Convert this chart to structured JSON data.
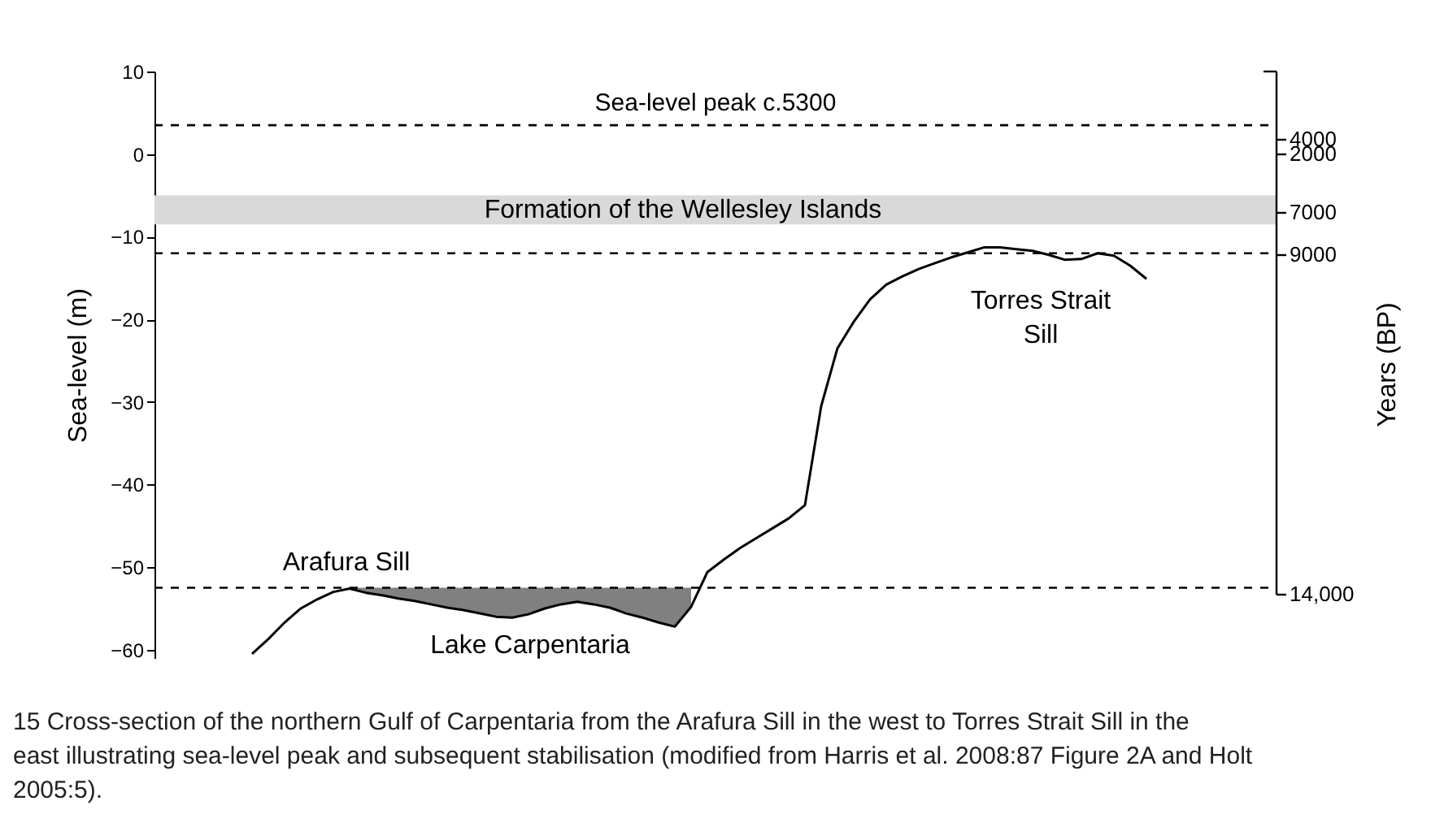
{
  "chart_data": {
    "type": "line",
    "ylabel": "Sea-level (m)",
    "y2label": "Years (BP)",
    "categories": [
      null,
      null,
      null,
      null,
      null,
      null,
      null,
      null,
      null,
      null,
      null,
      null,
      null,
      null,
      null,
      null,
      null,
      null,
      null,
      null,
      null,
      null,
      null,
      null,
      null,
      null,
      null,
      null,
      null,
      null,
      null,
      null,
      null,
      null,
      null,
      null,
      null,
      null,
      null,
      null,
      null,
      null,
      null,
      null,
      null,
      null,
      null,
      null,
      null,
      null,
      null,
      null,
      null,
      null,
      null,
      null,
      null,
      null,
      null,
      null,
      null,
      null,
      null,
      null,
      null,
      null,
      null,
      null,
      null,
      null
    ],
    "ylim": [
      -61,
      10
    ],
    "yticks": [
      -60,
      -50,
      -40,
      -30,
      -20,
      -10,
      0,
      10
    ],
    "series": [
      {
        "type": "line",
        "color": "#000000",
        "values": [
          null,
          null,
          null,
          null,
          null,
          null,
          -60.5,
          -58.7,
          -56.7,
          -55.0,
          -53.9,
          -53.0,
          -52.6,
          -53.1,
          -53.4,
          -53.8,
          -54.1,
          -54.5,
          -54.9,
          -55.2,
          -55.6,
          -56.0,
          -56.1,
          -55.7,
          -55.0,
          -54.5,
          -54.2,
          -54.5,
          -54.9,
          -55.6,
          -56.1,
          -56.7,
          -57.2,
          -54.8,
          -50.6,
          -49.1,
          -47.7,
          -46.5,
          -45.3,
          -44.1,
          -42.5,
          -30.5,
          -23.5,
          -20.3,
          -17.6,
          -15.8,
          -14.8,
          -13.9,
          -13.2,
          -12.5,
          -11.9,
          -11.3,
          -11.3,
          -11.5,
          -11.7,
          -12.2,
          -12.8,
          -12.7,
          -12.0,
          -12.3,
          -13.5,
          -15.1,
          null,
          null,
          null,
          null,
          null,
          null,
          null,
          null
        ]
      },
      {
        "type": "area",
        "color": "#808080",
        "values": [
          null,
          null,
          null,
          null,
          null,
          null,
          null,
          null,
          null,
          null,
          null,
          null,
          -52.6,
          -53.1,
          -53.4,
          -53.8,
          -54.1,
          -54.5,
          -54.9,
          -55.2,
          -55.6,
          -56.0,
          -56.1,
          -55.7,
          -55.0,
          -54.5,
          -54.2,
          -54.5,
          -54.9,
          -55.6,
          -56.1,
          -56.7,
          -57.2,
          -54.8,
          null,
          null,
          null,
          null,
          null,
          null,
          null,
          null,
          null,
          null,
          null,
          null,
          null,
          null,
          null,
          null,
          null,
          null,
          null,
          null,
          null,
          null,
          null,
          null,
          null,
          null,
          null,
          null,
          null,
          null,
          null,
          null,
          null,
          null,
          null,
          null
        ]
      }
    ],
    "ref_lines": [
      {
        "axis": "y",
        "value": 3.5,
        "label": "Sea-level peak c.5300",
        "color": "#000000",
        "line_style": "dashed"
      },
      {
        "axis": "y",
        "value": -12,
        "label": null,
        "color": "#000000",
        "line_style": "dashed"
      },
      {
        "axis": "y",
        "value": -52.5,
        "label": null,
        "color": "#000000",
        "line_style": "dashed"
      }
    ],
    "bands": [
      {
        "axis": "y",
        "from": -5,
        "to": -8.5,
        "label": "Formation of the Wellesley Islands",
        "color": "#d9d9d9"
      }
    ],
    "annotations": [
      "Arafura Sill",
      "Lake Carpentaria",
      "Torres Strait\nSill",
      "4000",
      "2000",
      "7000",
      "9000",
      "14,000",
      "15 Cross-section of the northern Gulf of Carpentaria from the Arafura Sill in the west to Torres Strait Sill in the east illustrating sea-level peak and subsequent stabilisation (modified from Harris et al. 2008:87 Figure 2A and Holt 2005:5)."
    ],
    "grid": false,
    "marker": "none",
    "line_style": "solid"
  }
}
